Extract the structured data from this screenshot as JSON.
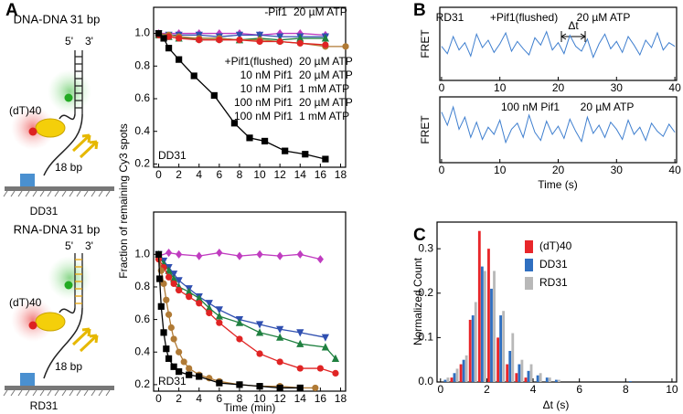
{
  "panel_labels": [
    "A",
    "B",
    "C"
  ],
  "schematics": [
    {
      "title": "DNA-DNA 31 bp",
      "five_prime": "5'",
      "three_prime": "3'",
      "tail": "(dT)40",
      "duplex": "18 bp",
      "label": "DD31"
    },
    {
      "title": "RNA-DNA 31 bp",
      "five_prime": "5'",
      "three_prime": "3'",
      "tail": "(dT)40",
      "duplex": "18 bp",
      "label": "RD31"
    }
  ],
  "chart_data": [
    {
      "type": "line",
      "ylabel": "Fraction of remaining Cy3 spots",
      "annotations": [
        "DD31"
      ],
      "xlim": [
        -0.5,
        18.5
      ],
      "xticks": [
        0,
        2,
        4,
        6,
        8,
        10,
        12,
        14,
        16,
        18
      ],
      "ylim": [
        0.18,
        1.16
      ],
      "yticks": [
        0.2,
        0.4,
        0.6,
        0.8,
        {
          "value": 1,
          "label": "1.0"
        }
      ],
      "series": [
        {
          "name": "-Pif1",
          "atp": "20 µM ATP",
          "color": "#c03cc0",
          "marker": "diamond",
          "x": [
            0,
            2,
            4,
            6,
            8,
            10,
            12,
            14,
            16.5
          ],
          "values": [
            1.0,
            1.0,
            1.0,
            1.0,
            1.0,
            0.99,
            1.0,
            1.0,
            0.99
          ]
        },
        {
          "name": "+Pif1(flushed)",
          "atp": "20 µM ATP",
          "color": "#2f4fb0",
          "marker": "triangle-down",
          "x": [
            0,
            1,
            2,
            4,
            6,
            8,
            10,
            12,
            14,
            16.5
          ],
          "values": [
            1.0,
            0.99,
            0.99,
            0.99,
            0.98,
            0.99,
            0.99,
            0.98,
            0.98,
            0.98
          ]
        },
        {
          "name": "10 nM Pif1",
          "atp": "20 µM ATP",
          "color": "#1f8040",
          "marker": "triangle-up",
          "x": [
            0,
            1,
            2,
            4,
            6,
            8,
            10,
            12,
            14,
            16.5
          ],
          "values": [
            0.99,
            0.98,
            0.97,
            0.97,
            0.97,
            0.96,
            0.97,
            0.96,
            0.97,
            0.97
          ]
        },
        {
          "name": "10 nM Pif1",
          "atp": "1 mM ATP",
          "color": "#b07a35",
          "marker": "circle",
          "x": [
            0,
            1,
            2,
            4,
            6,
            8,
            10,
            12,
            14,
            16.5,
            18.5
          ],
          "values": [
            1.0,
            0.99,
            0.98,
            0.97,
            0.97,
            0.96,
            0.96,
            0.95,
            0.94,
            0.92,
            0.92
          ]
        },
        {
          "name": "100 nM Pif1",
          "atp": "20 µM ATP",
          "color": "#e02424",
          "marker": "circle",
          "x": [
            0,
            1,
            2,
            4,
            6,
            8,
            10,
            12,
            14,
            16.5
          ],
          "values": [
            0.99,
            0.98,
            0.97,
            0.96,
            0.96,
            0.96,
            0.95,
            0.95,
            0.94,
            0.93
          ]
        },
        {
          "name": "100 nM Pif1",
          "atp": "1 mM ATP",
          "color": "#000000",
          "marker": "square",
          "x": [
            0,
            0.5,
            1,
            2,
            3.5,
            5.5,
            7.5,
            9,
            10.5,
            12.5,
            14.5,
            16.5
          ],
          "values": [
            1.0,
            0.97,
            0.91,
            0.84,
            0.74,
            0.62,
            0.45,
            0.36,
            0.34,
            0.28,
            0.26,
            0.23
          ]
        }
      ]
    },
    {
      "type": "line",
      "xlabel": "Time (min)",
      "annotations": [
        "RD31"
      ],
      "xlim": [
        -0.5,
        18.5
      ],
      "xticks": [
        0,
        2,
        4,
        6,
        8,
        10,
        12,
        14,
        16,
        18
      ],
      "ylim": [
        0.16,
        1.26
      ],
      "yticks": [
        0.2,
        0.4,
        0.6,
        0.8,
        {
          "value": 1,
          "label": "1.0"
        }
      ],
      "series": [
        {
          "color": "#c03cc0",
          "marker": "diamond",
          "x": [
            0,
            1,
            2,
            4,
            6,
            8,
            10,
            12,
            14,
            16
          ],
          "values": [
            0.99,
            1.01,
            1.0,
            0.99,
            1.01,
            0.99,
            1.0,
            0.99,
            1.0,
            0.97
          ]
        },
        {
          "color": "#2f4fb0",
          "marker": "triangle-down",
          "x": [
            0,
            0.5,
            1,
            1.5,
            2,
            3,
            4,
            5,
            6,
            8,
            10,
            12,
            14,
            16.5
          ],
          "values": [
            1.0,
            0.96,
            0.92,
            0.88,
            0.84,
            0.79,
            0.74,
            0.7,
            0.66,
            0.6,
            0.57,
            0.54,
            0.52,
            0.49
          ]
        },
        {
          "color": "#1f8040",
          "marker": "triangle-up",
          "x": [
            0,
            0.5,
            1,
            1.5,
            2,
            3,
            4,
            5,
            6,
            8,
            10,
            12,
            14,
            16.5,
            17.5
          ],
          "values": [
            1.0,
            0.94,
            0.9,
            0.85,
            0.8,
            0.77,
            0.73,
            0.67,
            0.62,
            0.58,
            0.52,
            0.49,
            0.45,
            0.43,
            0.36
          ]
        },
        {
          "color": "#e02424",
          "marker": "circle",
          "x": [
            0,
            0.5,
            1,
            1.5,
            2,
            3,
            4,
            5,
            6,
            8,
            10,
            12,
            14,
            16,
            17.5
          ],
          "values": [
            0.97,
            0.92,
            0.86,
            0.82,
            0.78,
            0.74,
            0.7,
            0.64,
            0.58,
            0.48,
            0.39,
            0.34,
            0.3,
            0.3,
            0.27
          ]
        },
        {
          "color": "#b07a35",
          "marker": "circle",
          "x": [
            0,
            0.25,
            0.5,
            0.75,
            1,
            1.25,
            1.5,
            2,
            2.5,
            3,
            4,
            5,
            6,
            8,
            10,
            12,
            14,
            15.5
          ],
          "values": [
            1.0,
            0.9,
            0.82,
            0.72,
            0.63,
            0.55,
            0.48,
            0.4,
            0.34,
            0.3,
            0.26,
            0.24,
            0.22,
            0.2,
            0.19,
            0.19,
            0.18,
            0.18
          ]
        },
        {
          "color": "#000000",
          "marker": "square",
          "x": [
            0,
            0.1,
            0.25,
            0.5,
            0.75,
            1,
            1.5,
            2,
            3,
            4,
            6,
            8,
            10,
            12,
            14
          ],
          "values": [
            1.0,
            0.85,
            0.68,
            0.52,
            0.42,
            0.36,
            0.31,
            0.28,
            0.26,
            0.25,
            0.21,
            0.2,
            0.19,
            0.18,
            0.18
          ]
        }
      ]
    },
    {
      "type": "line",
      "ylabel": "FRET",
      "annotations": [
        "RD31",
        "+Pif1(flushed)",
        "20 µM ATP",
        "Δt"
      ],
      "xlim": [
        -0.3,
        40.3
      ],
      "xticks": [
        0,
        10,
        20,
        30,
        40
      ],
      "ylim": [
        0.05,
        0.65
      ],
      "x": [
        0,
        1,
        2,
        3,
        4,
        5,
        6,
        7,
        8,
        9,
        10,
        11,
        12,
        13,
        14,
        15,
        16,
        17,
        18,
        19,
        20,
        21,
        22,
        23,
        24,
        25,
        26,
        27,
        28,
        29,
        30,
        31,
        32,
        33,
        34,
        35,
        36,
        37,
        38,
        39,
        40
      ],
      "series": [
        {
          "color": "#3f7fcf",
          "values": [
            0.33,
            0.27,
            0.41,
            0.3,
            0.36,
            0.25,
            0.43,
            0.32,
            0.38,
            0.28,
            0.35,
            0.44,
            0.29,
            0.37,
            0.31,
            0.26,
            0.4,
            0.34,
            0.45,
            0.3,
            0.36,
            0.27,
            0.42,
            0.33,
            0.29,
            0.39,
            0.24,
            0.35,
            0.43,
            0.31,
            0.37,
            0.28,
            0.41,
            0.34,
            0.26,
            0.38,
            0.32,
            0.44,
            0.3,
            0.36,
            0.33
          ]
        }
      ]
    },
    {
      "type": "line",
      "ylabel": "FRET",
      "xlabel": "Time (s)",
      "annotations": [
        "100 nM Pif1",
        "20 µM ATP"
      ],
      "xlim": [
        -0.3,
        40.3
      ],
      "xticks": [
        0,
        10,
        20,
        30,
        40
      ],
      "ylim": [
        0.05,
        0.7
      ],
      "x": [
        0,
        1,
        2,
        3,
        4,
        5,
        6,
        7,
        8,
        9,
        10,
        11,
        12,
        13,
        14,
        15,
        16,
        17,
        18,
        19,
        20,
        21,
        22,
        23,
        24,
        25,
        26,
        27,
        28,
        29,
        30,
        31,
        32,
        33,
        34,
        35,
        36,
        37,
        38,
        39,
        40
      ],
      "series": [
        {
          "color": "#3f7fcf",
          "values": [
            0.55,
            0.42,
            0.6,
            0.38,
            0.5,
            0.3,
            0.45,
            0.28,
            0.4,
            0.33,
            0.47,
            0.25,
            0.38,
            0.44,
            0.3,
            0.52,
            0.35,
            0.27,
            0.46,
            0.33,
            0.41,
            0.29,
            0.48,
            0.36,
            0.26,
            0.5,
            0.34,
            0.42,
            0.3,
            0.45,
            0.38,
            0.28,
            0.47,
            0.33,
            0.4,
            0.27,
            0.44,
            0.36,
            0.31,
            0.43,
            0.35
          ]
        }
      ]
    },
    {
      "type": "histogram",
      "xlabel": "Δt (s)",
      "ylabel": "Normalized Count",
      "xlim": [
        -0.15,
        10.2
      ],
      "xticks": [
        0,
        2,
        4,
        6,
        8,
        10
      ],
      "ylim": [
        0,
        0.36
      ],
      "yticks": [
        {
          "value": 0,
          "label": "0.0"
        },
        0.1,
        0.2,
        0.3
      ],
      "bins": [
        0,
        0.4,
        0.8,
        1.2,
        1.6,
        2,
        2.4,
        2.8,
        3.2,
        3.6,
        4,
        4.4,
        4.8,
        5.2,
        5.6,
        6,
        6.4,
        6.8,
        7.2,
        7.6,
        8,
        8.4,
        8.8
      ],
      "series": [
        {
          "name": "(dT)40",
          "color": "#e8262a",
          "values": [
            0,
            0.01,
            0.04,
            0.14,
            0.34,
            0.3,
            0.1,
            0.04,
            0.02,
            0.01,
            0,
            0,
            0,
            0,
            0,
            0,
            0,
            0,
            0,
            0,
            0,
            0
          ]
        },
        {
          "name": "DD31",
          "color": "#2f6fc0",
          "values": [
            0.005,
            0.02,
            0.05,
            0.15,
            0.26,
            0.21,
            0.15,
            0.07,
            0.04,
            0.025,
            0.015,
            0.01,
            0.005,
            0,
            0,
            0,
            0,
            0,
            0,
            0,
            0.002,
            0
          ]
        },
        {
          "name": "RD31",
          "color": "#b8b8b8",
          "values": [
            0.01,
            0.03,
            0.06,
            0.18,
            0.25,
            0.25,
            0.16,
            0.11,
            0.05,
            0.04,
            0.02,
            0.01,
            0.005,
            0,
            0,
            0,
            0,
            0,
            0,
            0,
            0,
            0
          ]
        }
      ]
    }
  ]
}
